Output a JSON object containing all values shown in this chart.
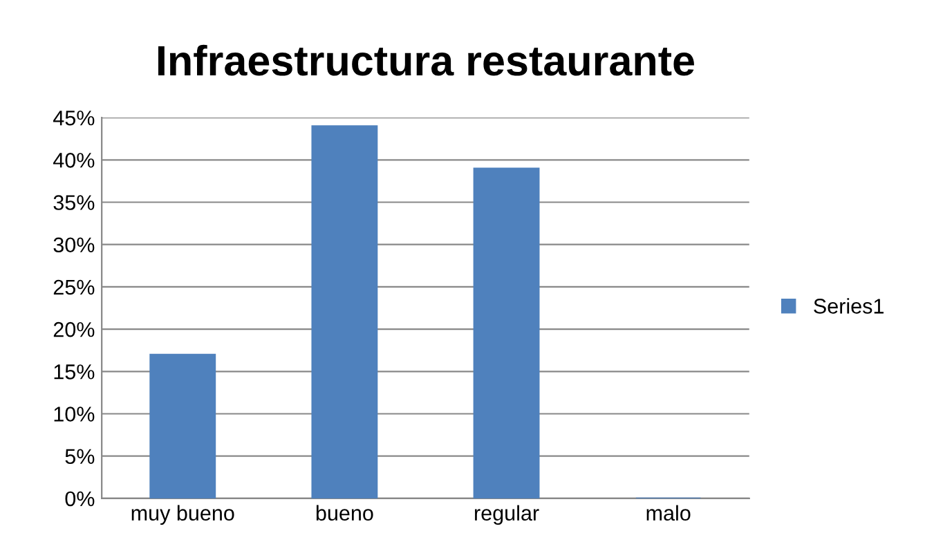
{
  "chart_data": {
    "type": "bar",
    "title": "Infraestructura restaurante",
    "categories": [
      "muy bueno",
      "bueno",
      "regular",
      "malo"
    ],
    "series": [
      {
        "name": "Series1",
        "color": "#4f81bd",
        "values": [
          17,
          44,
          39,
          0
        ]
      }
    ],
    "ylim": [
      0,
      45
    ],
    "yticks": [
      {
        "value": 0,
        "label": "0%"
      },
      {
        "value": 5,
        "label": "5%"
      },
      {
        "value": 10,
        "label": "10%"
      },
      {
        "value": 15,
        "label": "15%"
      },
      {
        "value": 20,
        "label": "20%"
      },
      {
        "value": 25,
        "label": "25%"
      },
      {
        "value": 30,
        "label": "30%"
      },
      {
        "value": 35,
        "label": "35%"
      },
      {
        "value": 40,
        "label": "40%"
      },
      {
        "value": 45,
        "label": "45%"
      }
    ],
    "grid": "y",
    "legend": "right"
  }
}
